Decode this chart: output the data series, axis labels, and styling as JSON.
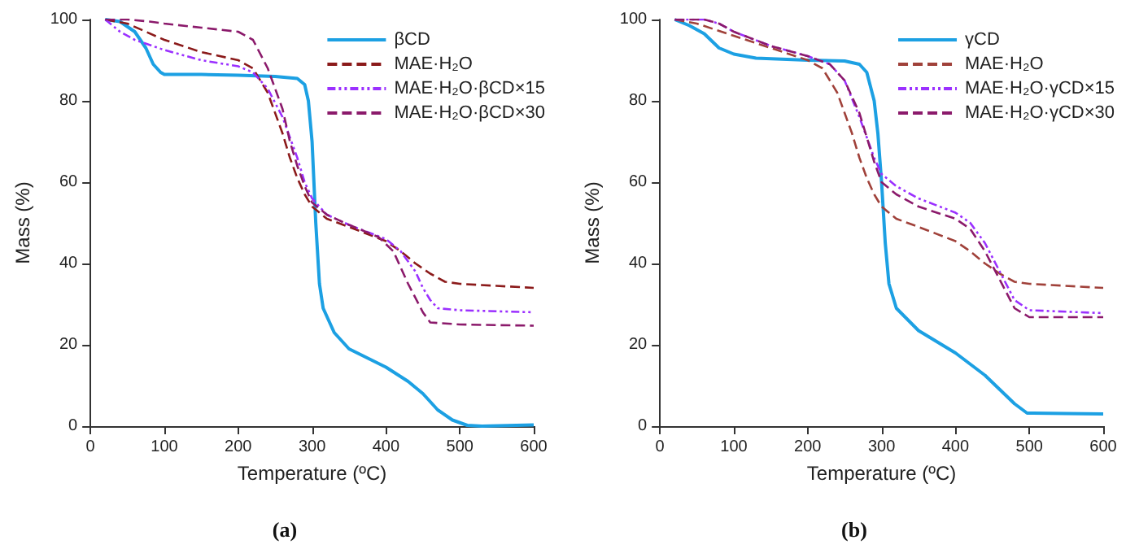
{
  "chart_data": [
    {
      "type": "line",
      "xlabel": "Temperature (ºC)",
      "ylabel": "Mass (%)",
      "annotations": [
        "(a)"
      ],
      "xlim": [
        0,
        600
      ],
      "ylim": [
        0,
        100
      ],
      "xticks": [
        0,
        100,
        200,
        300,
        400,
        500,
        600
      ],
      "yticks": [
        0,
        20,
        40,
        60,
        80,
        100
      ],
      "grid": false,
      "legend": "top right",
      "marker": "none",
      "series": [
        {
          "name": "βCD",
          "color": "#1ca0e3",
          "line_style": "solid",
          "x": [
            20,
            40,
            60,
            75,
            85,
            95,
            100,
            150,
            200,
            250,
            280,
            290,
            295,
            300,
            305,
            310,
            315,
            330,
            350,
            400,
            430,
            450,
            470,
            490,
            510,
            530,
            600
          ],
          "values": [
            100,
            99.5,
            97,
            93,
            89,
            87,
            86.5,
            86.5,
            86.3,
            86,
            85.5,
            84,
            80,
            70,
            50,
            35,
            29,
            23,
            19,
            14.5,
            11,
            8,
            4,
            1.5,
            0.2,
            0,
            0.3
          ]
        },
        {
          "name": "MAE·H₂O",
          "color": "#8b1a1a",
          "line_style": "dashed",
          "x": [
            20,
            50,
            75,
            100,
            150,
            200,
            220,
            240,
            260,
            270,
            280,
            290,
            300,
            320,
            350,
            400,
            420,
            440,
            460,
            480,
            500,
            550,
            600
          ],
          "values": [
            100,
            99,
            97,
            95,
            92,
            90,
            88,
            82,
            72,
            66,
            61,
            57,
            54,
            51,
            49,
            45.5,
            43,
            40,
            37.5,
            35.5,
            35,
            34.5,
            34
          ]
        },
        {
          "name": "MAE·H₂O·βCD×15",
          "color": "#9b30ff",
          "line_style": "dotted",
          "x": [
            20,
            40,
            60,
            100,
            150,
            200,
            220,
            240,
            260,
            280,
            290,
            300,
            320,
            350,
            400,
            420,
            440,
            450,
            460,
            470,
            500,
            600
          ],
          "values": [
            100,
            97,
            95,
            92.5,
            90,
            88.5,
            87,
            83,
            76,
            66,
            60,
            56,
            52,
            49.5,
            46,
            43,
            38,
            34,
            31,
            29,
            28.5,
            28
          ]
        },
        {
          "name": "MAE·H₂O·βCD×30",
          "color": "#8b1a6b",
          "line_style": "dashed",
          "x": [
            20,
            50,
            80,
            100,
            150,
            200,
            220,
            240,
            260,
            270,
            280,
            290,
            300,
            320,
            350,
            390,
            410,
            430,
            450,
            460,
            500,
            600
          ],
          "values": [
            100,
            100,
            99.5,
            99,
            98,
            97,
            95,
            88,
            78,
            70,
            64,
            59,
            55,
            52,
            49.5,
            46.5,
            43,
            35,
            28,
            25.5,
            25,
            24.7
          ]
        }
      ]
    },
    {
      "type": "line",
      "xlabel": "Temperature (ºC)",
      "ylabel": "Mass (%)",
      "annotations": [
        "(b)"
      ],
      "xlim": [
        0,
        600
      ],
      "ylim": [
        0,
        100
      ],
      "xticks": [
        0,
        100,
        200,
        300,
        400,
        500,
        600
      ],
      "yticks": [
        0,
        20,
        40,
        60,
        80,
        100
      ],
      "grid": false,
      "legend": "top right",
      "marker": "none",
      "series": [
        {
          "name": "γCD",
          "color": "#1ca0e3",
          "line_style": "solid",
          "x": [
            20,
            40,
            60,
            80,
            100,
            130,
            200,
            250,
            270,
            280,
            290,
            295,
            300,
            305,
            310,
            320,
            350,
            400,
            440,
            460,
            480,
            497,
            550,
            600
          ],
          "values": [
            100,
            98.5,
            96.5,
            93,
            91.5,
            90.5,
            90,
            89.8,
            89,
            87,
            80,
            72,
            60,
            45,
            35,
            29,
            23.5,
            18,
            12.5,
            9,
            5.5,
            3.2,
            3.1,
            3
          ]
        },
        {
          "name": "MAE·H₂O",
          "color": "#a0413a",
          "line_style": "dashed",
          "x": [
            20,
            50,
            100,
            150,
            200,
            220,
            240,
            260,
            270,
            280,
            290,
            300,
            320,
            350,
            400,
            420,
            440,
            460,
            480,
            500,
            600
          ],
          "values": [
            100,
            99,
            96,
            93,
            90,
            88,
            82,
            72,
            66,
            61,
            57,
            54,
            51,
            49,
            45.5,
            43,
            40,
            37.5,
            35.5,
            35,
            34
          ]
        },
        {
          "name": "MAE·H₂O·γCD×15",
          "color": "#9b30ff",
          "line_style": "dotted",
          "x": [
            20,
            60,
            80,
            100,
            150,
            200,
            230,
            250,
            270,
            290,
            300,
            320,
            350,
            400,
            420,
            440,
            460,
            480,
            500,
            600
          ],
          "values": [
            100,
            100,
            99,
            97,
            93.5,
            91,
            89,
            85,
            76,
            66,
            62,
            59,
            56,
            52.5,
            50,
            45,
            38,
            31,
            28.5,
            27.8
          ]
        },
        {
          "name": "MAE·H₂O·γCD×30",
          "color": "#8b1a6b",
          "line_style": "dashed",
          "x": [
            20,
            60,
            80,
            100,
            150,
            200,
            230,
            250,
            270,
            290,
            300,
            320,
            350,
            400,
            420,
            440,
            460,
            480,
            500,
            600
          ],
          "values": [
            100,
            100,
            99,
            97,
            93.5,
            91,
            89,
            85,
            77,
            65,
            60,
            57,
            54,
            51,
            48.5,
            43,
            36,
            29,
            26.8,
            26.8
          ]
        }
      ]
    }
  ]
}
